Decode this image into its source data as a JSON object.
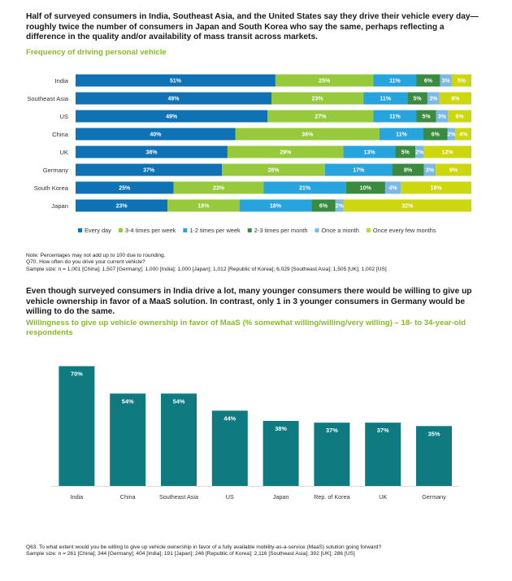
{
  "section1": {
    "headline": "Half of surveyed consumers in India, Southeast Asia, and the United States say they drive their vehicle every day—roughly twice the number of consumers in Japan and South Korea who say the same, perhaps reflecting a difference in the quality and/or availability of mass transit across markets.",
    "subtitle": "Frequency of driving personal vehicle",
    "note_lines": [
      "Note: Percentages may not add up to 100 due to rounding.",
      "Q70. How often do you drive your current vehicle?",
      "Sample size: n = 1,001 [China]; 1,507 [Germany]; 1,000 [India]; 1,000 [Japan]; 1,012 [Republic of Korea]; 6,029 [Southeast Asia]; 1,505 [UK]; 1,002 [US]"
    ]
  },
  "section2": {
    "headline": "Even though surveyed consumers in India drive a lot, many younger consumers there would be willing to give up vehicle ownership in favor of a MaaS solution. In contrast, only 1 in 3 younger consumers in Germany would be willing to do the same.",
    "subtitle": "Willingness to give up vehicle ownership in favor of MaaS (% somewhat willing/willing/very willing) – 18- to 34-year-old respondents",
    "note_lines": [
      "Q63. To what extent would you be willing to give up vehicle ownership in favor of a fully available mobility-as-a-service (MaaS) solution going forward?",
      "Sample size: n = 261 [China]; 344 [Germany]; 404 [India]; 191 [Japan]; 246 [Republic of Korea]; 2,116 [Southeast Asia]; 392 [UK]; 286 [US]"
    ]
  },
  "chart_data": [
    {
      "type": "bar",
      "orientation": "horizontal",
      "stacked": true,
      "title": "Frequency of driving personal vehicle",
      "categories": [
        "India",
        "Southeast Asia",
        "US",
        "China",
        "UK",
        "Germany",
        "South Korea",
        "Japan"
      ],
      "series": [
        {
          "name": "Every day",
          "color": "#0e72b5",
          "values": [
            51,
            49,
            49,
            40,
            38,
            37,
            25,
            23
          ]
        },
        {
          "name": "3-4 times per week",
          "color": "#97c93d",
          "values": [
            25,
            23,
            27,
            36,
            29,
            26,
            23,
            18
          ]
        },
        {
          "name": "1-2 times per week",
          "color": "#27a3dd",
          "values": [
            11,
            11,
            11,
            11,
            13,
            17,
            21,
            18
          ]
        },
        {
          "name": "2-3 times per month",
          "color": "#3a8a3f",
          "values": [
            6,
            5,
            5,
            6,
            5,
            8,
            10,
            6
          ]
        },
        {
          "name": "Once a month",
          "color": "#7bb8e6",
          "values": [
            3,
            3,
            3,
            2,
            2,
            3,
            4,
            2
          ]
        },
        {
          "name": "Once every few months",
          "color": "#cdd70f",
          "values": [
            5,
            8,
            6,
            4,
            12,
            9,
            18,
            32
          ]
        }
      ],
      "value_suffix": "%",
      "legend_position": "bottom"
    },
    {
      "type": "bar",
      "orientation": "vertical",
      "title": "Willingness to give up vehicle ownership in favor of MaaS (% somewhat willing/willing/very willing) – 18- to 34-year-old respondents",
      "categories": [
        "India",
        "China",
        "Southeast Asia",
        "US",
        "Japan",
        "Rep. of Korea",
        "UK",
        "Germany"
      ],
      "values": [
        70,
        54,
        54,
        44,
        38,
        37,
        37,
        35
      ],
      "value_suffix": "%",
      "color": "#0f7b80",
      "ylim": [
        0,
        76
      ]
    }
  ]
}
